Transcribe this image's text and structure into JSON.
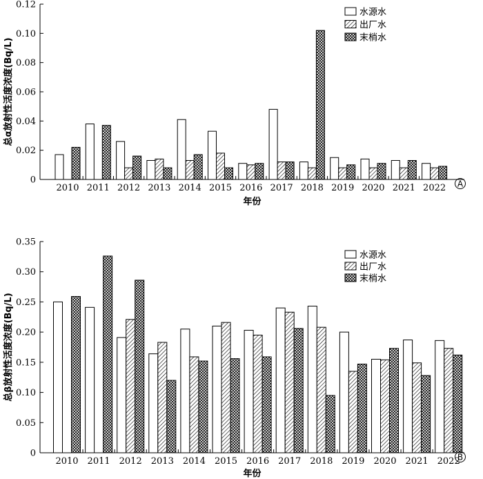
{
  "chart_data": [
    {
      "type": "bar",
      "panel_label": "A",
      "xlabel": "年份",
      "ylabel": "总α放射性活度浓度(Bq/L)",
      "ylim": [
        0,
        0.12
      ],
      "yticks": [
        "0",
        "0.02",
        "0.04",
        "0.06",
        "0.08",
        "0.10",
        "0.12"
      ],
      "categories": [
        "2010",
        "2011",
        "2012",
        "2013",
        "2014",
        "2015",
        "2016",
        "2017",
        "2018",
        "2019",
        "2020",
        "2021",
        "2022"
      ],
      "legend_position": "top-right",
      "series": [
        {
          "name": "水源水",
          "pattern": "solid-white",
          "values": [
            0.017,
            0.038,
            0.026,
            0.013,
            0.041,
            0.033,
            0.011,
            0.048,
            0.012,
            0.015,
            0.014,
            0.013,
            0.011
          ]
        },
        {
          "name": "出厂水",
          "pattern": "diagonal-hatch",
          "values": [
            null,
            null,
            0.008,
            0.014,
            0.013,
            0.018,
            0.01,
            0.012,
            0.008,
            0.008,
            0.008,
            0.008,
            0.008
          ]
        },
        {
          "name": "末梢水",
          "pattern": "crosshatch",
          "values": [
            0.022,
            0.037,
            0.016,
            0.008,
            0.017,
            0.008,
            0.011,
            0.012,
            0.102,
            0.01,
            0.011,
            0.013,
            0.009
          ]
        }
      ]
    },
    {
      "type": "bar",
      "panel_label": "B",
      "xlabel": "年份",
      "ylabel": "总β放射性活度浓度(Bq/L)",
      "ylim": [
        0,
        0.35
      ],
      "yticks": [
        "0",
        "0.05",
        "0.10",
        "0.15",
        "0.20",
        "0.25",
        "0.30",
        "0.35"
      ],
      "categories": [
        "2010",
        "2011",
        "2012",
        "2013",
        "2014",
        "2015",
        "2016",
        "2017",
        "2018",
        "2019",
        "2020",
        "2021",
        "2022"
      ],
      "legend_position": "top-right",
      "series": [
        {
          "name": "水源水",
          "pattern": "solid-white",
          "values": [
            0.25,
            0.241,
            0.191,
            0.164,
            0.205,
            0.21,
            0.203,
            0.24,
            0.243,
            0.2,
            0.155,
            0.187,
            0.186
          ]
        },
        {
          "name": "出厂水",
          "pattern": "diagonal-hatch",
          "values": [
            null,
            null,
            0.221,
            0.183,
            0.159,
            0.216,
            0.195,
            0.233,
            0.208,
            0.135,
            0.154,
            0.149,
            0.173
          ]
        },
        {
          "name": "末梢水",
          "pattern": "crosshatch",
          "values": [
            0.259,
            0.326,
            0.286,
            0.12,
            0.152,
            0.156,
            0.159,
            0.206,
            0.095,
            0.147,
            0.173,
            0.128,
            0.162
          ]
        }
      ]
    }
  ]
}
